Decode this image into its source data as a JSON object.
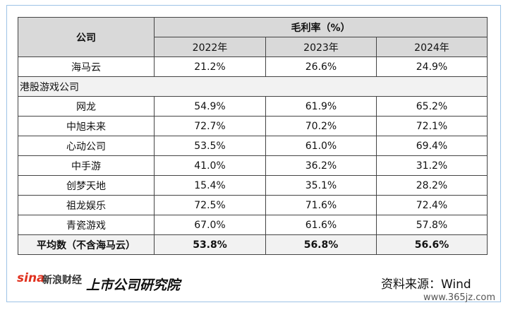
{
  "table": {
    "company_header": "公司",
    "metric_header": "毛利率（%）",
    "years": [
      "2022年",
      "2023年",
      "2024年"
    ],
    "top_rows": [
      [
        "海马云",
        "21.2%",
        "26.6%",
        "24.9%"
      ]
    ],
    "group": "港股游戏公司",
    "group_rows": [
      [
        "网龙",
        "54.9%",
        "61.9%",
        "65.2%"
      ],
      [
        "中旭未来",
        "72.7%",
        "70.2%",
        "72.1%"
      ],
      [
        "心动公司",
        "53.5%",
        "61.0%",
        "69.4%"
      ],
      [
        "中手游",
        "41.0%",
        "36.2%",
        "31.2%"
      ],
      [
        "创梦天地",
        "15.4%",
        "35.1%",
        "28.2%"
      ],
      [
        "祖龙娱乐",
        "72.5%",
        "71.6%",
        "72.4%"
      ],
      [
        "青瓷游戏",
        "67.0%",
        "61.6%",
        "57.8%"
      ]
    ],
    "average": [
      "平均数（不含海马云）",
      "53.8%",
      "56.8%",
      "56.6%"
    ]
  },
  "footer": {
    "sina": "sina",
    "sina_name": "新浪财经",
    "institute": "上市公司研究院",
    "source": "资料来源：Wind",
    "watermark": "www.365jz.com"
  }
}
